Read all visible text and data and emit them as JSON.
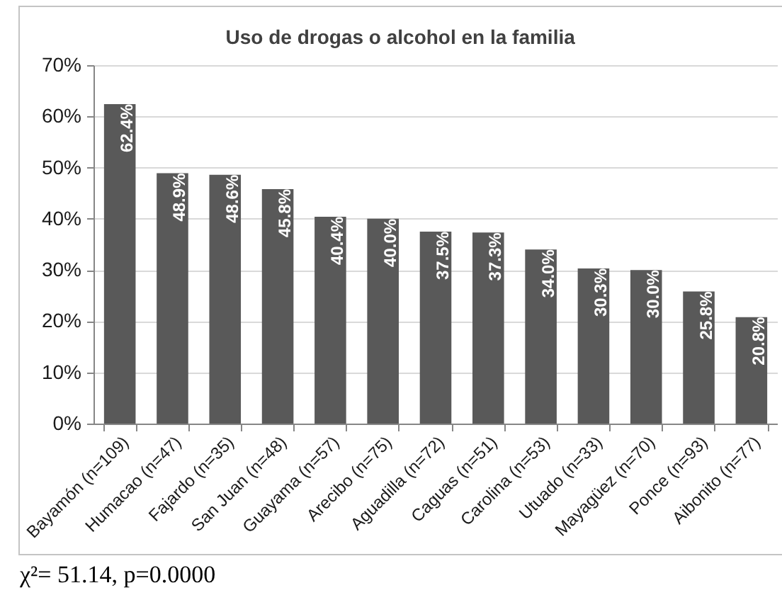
{
  "chart_data": {
    "type": "bar",
    "title": "Uso de drogas o alcohol en la familia",
    "categories": [
      "Bayamón (n=109)",
      "Humacao (n=47)",
      "Fajardo (n=35)",
      "San Juan (n=48)",
      "Guayama (n=57)",
      "Arecibo (n=75)",
      "Aguadilla (n=72)",
      "Caguas (n=51)",
      "Carolina (n=53)",
      "Utuado (n=33)",
      "Mayagüez (n=70)",
      "Ponce (n=93)",
      "Aibonito (n=77)"
    ],
    "values": [
      62.4,
      48.9,
      48.6,
      45.8,
      40.4,
      40.0,
      37.5,
      37.3,
      34.0,
      30.3,
      30.0,
      25.8,
      20.8
    ],
    "value_labels": [
      "62.4%",
      "48.9%",
      "48.6%",
      "45.8%",
      "40.4%",
      "40.0%",
      "37.5%",
      "37.3%",
      "34.0%",
      "30.3%",
      "30.0%",
      "25.8%",
      "20.8%"
    ],
    "color": "#595959",
    "ylim": [
      0,
      70
    ],
    "yticks": [
      {
        "value": 0,
        "label": "0%"
      },
      {
        "value": 10,
        "label": "10%"
      },
      {
        "value": 20,
        "label": "20%"
      },
      {
        "value": 30,
        "label": "30%"
      },
      {
        "value": 40,
        "label": "40%"
      },
      {
        "value": 50,
        "label": "50%"
      },
      {
        "value": 60,
        "label": "60%"
      },
      {
        "value": 70,
        "label": "70%"
      }
    ],
    "grid": "y",
    "annotations": [
      "χ²= 51.14, p=0.0000"
    ]
  }
}
